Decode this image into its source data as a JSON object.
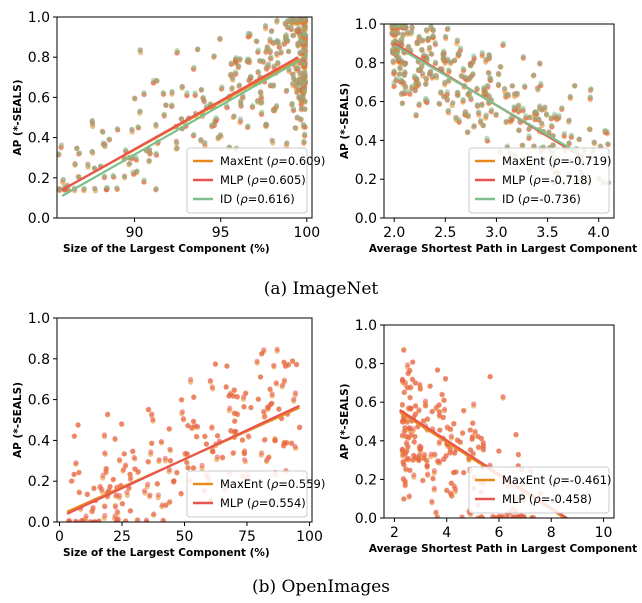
{
  "captions": [
    "(a) ImageNet",
    "(b) OpenImages"
  ],
  "series_colors": {
    "MaxEnt": "#e8891d",
    "MLP": "#e8554e",
    "ID": "#7fbf8e"
  },
  "chart_data": [
    {
      "type": "scatter",
      "panel": "top-left",
      "xlabel": "Size of the Largest Component (%)",
      "ylabel": "AP (*-SEALS)",
      "xlim": [
        85.5,
        100.3
      ],
      "ylim": [
        0.0,
        1.0
      ],
      "xticks": [
        90,
        95,
        100
      ],
      "xtick_labels": [
        "90",
        "95",
        "100"
      ],
      "yticks": [
        0.0,
        0.2,
        0.4,
        0.6,
        0.8,
        1.0
      ],
      "ytick_labels": [
        "0.0",
        "0.2",
        "0.4",
        "0.6",
        "0.8",
        "1.0"
      ],
      "legend_position": "lower-right",
      "cloud": {
        "n": 320,
        "seed": 11,
        "dist": "tail-high",
        "xmin": 85.6,
        "xmax": 99.9,
        "tail_power": 3.0,
        "slope": 0.0476,
        "intercept": -3.95,
        "noise": 0.17,
        "ymin": 0.14,
        "ymax": 0.98
      },
      "series": [
        {
          "name": "MaxEnt",
          "rho": "0.609",
          "fit": [
            [
              85.8,
              0.14
            ],
            [
              99.5,
              0.79
            ]
          ]
        },
        {
          "name": "MLP",
          "rho": "0.605",
          "fit": [
            [
              85.8,
              0.14
            ],
            [
              99.5,
              0.8
            ]
          ]
        },
        {
          "name": "ID",
          "rho": "0.616",
          "fit": [
            [
              85.8,
              0.11
            ],
            [
              99.5,
              0.78
            ]
          ]
        }
      ]
    },
    {
      "type": "scatter",
      "panel": "top-right",
      "xlabel": "Average Shortest Path in Largest Component",
      "ylabel": "AP (*-SEALS)",
      "xlim": [
        1.9,
        4.15
      ],
      "ylim": [
        0.0,
        1.0
      ],
      "xticks": [
        2.0,
        2.5,
        3.0,
        3.5,
        4.0
      ],
      "xtick_labels": [
        "2.0",
        "2.5",
        "3.0",
        "3.5",
        "4.0"
      ],
      "yticks": [
        0.0,
        0.2,
        0.4,
        0.6,
        0.8,
        1.0
      ],
      "ytick_labels": [
        "0.0",
        "0.2",
        "0.4",
        "0.6",
        "0.8",
        "1.0"
      ],
      "legend_position": "lower-right",
      "cloud": {
        "n": 300,
        "seed": 23,
        "dist": "head-low",
        "xmin": 1.98,
        "xmax": 4.1,
        "tail_power": 1.6,
        "slope": -0.315,
        "intercept": 1.53,
        "noise": 0.14,
        "ymin": 0.18,
        "ymax": 0.98
      },
      "series": [
        {
          "name": "MaxEnt",
          "rho": "-0.719",
          "fit": [
            [
              2.0,
              0.9
            ],
            [
              3.85,
              0.31
            ]
          ]
        },
        {
          "name": "MLP",
          "rho": "-0.718",
          "fit": [
            [
              2.0,
              0.9
            ],
            [
              3.85,
              0.31
            ]
          ]
        },
        {
          "name": "ID",
          "rho": "-0.736",
          "fit": [
            [
              2.0,
              0.89
            ],
            [
              3.85,
              0.32
            ]
          ]
        }
      ]
    },
    {
      "type": "scatter",
      "panel": "bottom-left",
      "xlabel": "Size of the Largest Component (%)",
      "ylabel": "AP (*-SEALS)",
      "xlim": [
        -1,
        101
      ],
      "ylim": [
        0.0,
        1.0
      ],
      "xticks": [
        0,
        25,
        50,
        75,
        100
      ],
      "xtick_labels": [
        "0",
        "25",
        "50",
        "75",
        "100"
      ],
      "yticks": [
        0.0,
        0.2,
        0.4,
        0.6,
        0.8,
        1.0
      ],
      "ytick_labels": [
        "0.0",
        "0.2",
        "0.4",
        "0.6",
        "0.8",
        "1.0"
      ],
      "legend_position": "lower-right",
      "cloud": {
        "n": 210,
        "seed": 37,
        "dist": "uniform",
        "xmin": 3,
        "xmax": 97,
        "tail_power": 1.0,
        "slope": 0.0055,
        "intercept": 0.04,
        "noise": 0.17,
        "ymin": 0.0,
        "ymax": 0.88
      },
      "series": [
        {
          "name": "MaxEnt",
          "rho": "0.559",
          "fit": [
            [
              3,
              0.05
            ],
            [
              96,
              0.56
            ]
          ]
        },
        {
          "name": "MLP",
          "rho": "0.554",
          "fit": [
            [
              3,
              0.04
            ],
            [
              96,
              0.57
            ]
          ]
        }
      ]
    },
    {
      "type": "scatter",
      "panel": "bottom-right",
      "xlabel": "Average Shortest Path in Largest Component",
      "ylabel": "AP (*-SEALS)",
      "xlim": [
        1.6,
        10.4
      ],
      "ylim": [
        0.0,
        1.0
      ],
      "xticks": [
        2,
        4,
        6,
        8,
        10
      ],
      "xtick_labels": [
        "2",
        "4",
        "6",
        "8",
        "10"
      ],
      "yticks": [
        0.0,
        0.2,
        0.4,
        0.6,
        0.8,
        1.0
      ],
      "ytick_labels": [
        "0.0",
        "0.2",
        "0.4",
        "0.6",
        "0.8",
        "1.0"
      ],
      "legend_position": "lower-right",
      "cloud": {
        "n": 210,
        "seed": 53,
        "dist": "head-low",
        "xmin": 2.3,
        "xmax": 7.6,
        "tail_power": 1.9,
        "slope": -0.095,
        "intercept": 0.72,
        "noise": 0.2,
        "ymin": 0.0,
        "ymax": 0.87
      },
      "series": [
        {
          "name": "MaxEnt",
          "rho": "-0.461",
          "fit": [
            [
              2.2,
              0.55
            ],
            [
              8.5,
              0.0
            ]
          ]
        },
        {
          "name": "MLP",
          "rho": "-0.458",
          "fit": [
            [
              2.2,
              0.56
            ],
            [
              8.6,
              0.0
            ]
          ]
        }
      ]
    }
  ]
}
